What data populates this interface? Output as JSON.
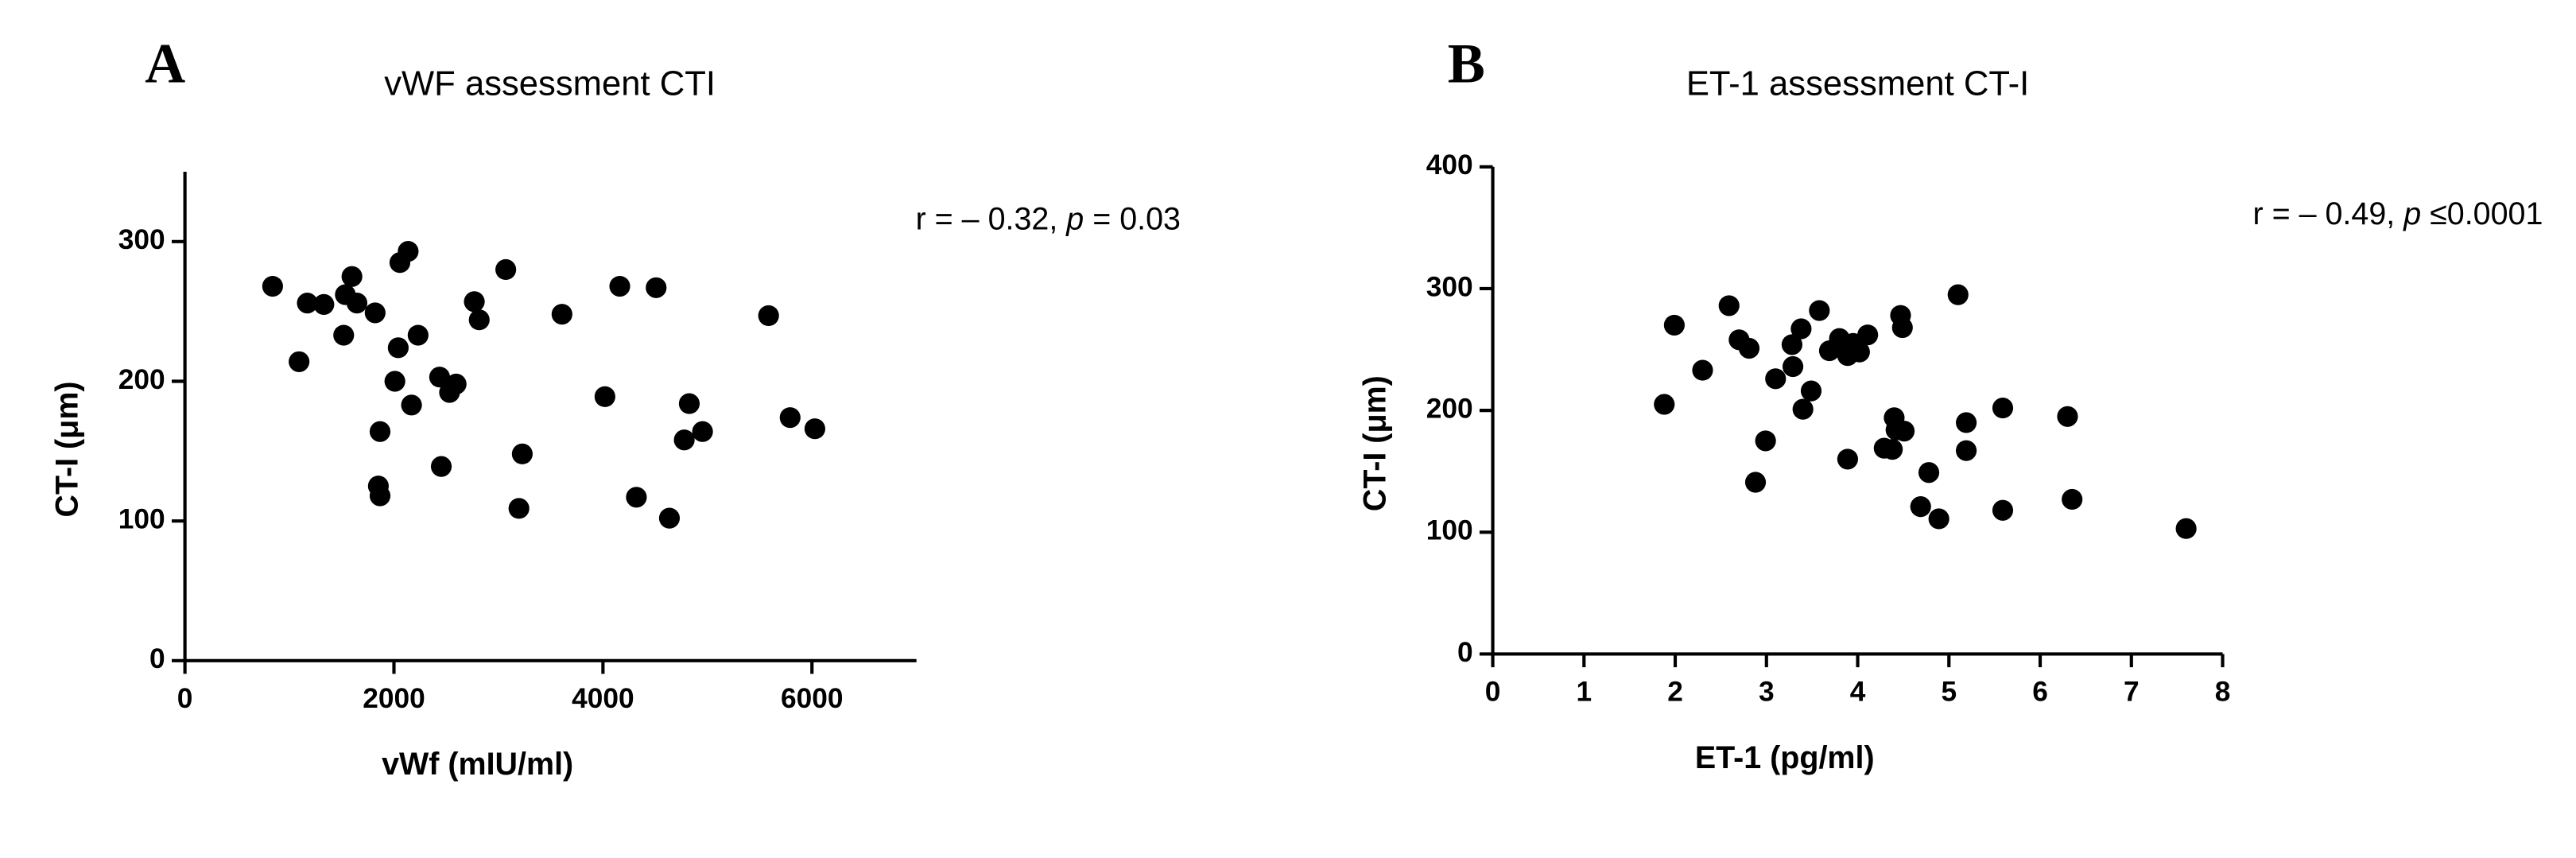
{
  "chart_data": [
    {
      "type": "scatter",
      "panel": "A",
      "title": "vWF assessment CTI",
      "xlabel": "vWf (mIU/ml)",
      "ylabel": "CT-I (μm)",
      "annotation": [
        "r = – 0.32, ",
        "p",
        " = 0.03"
      ],
      "color": "#000000",
      "xlim": [
        0,
        7000
      ],
      "xticks": [
        0,
        2000,
        4000,
        6000
      ],
      "ylim": [
        0,
        350
      ],
      "yticks": [
        0,
        100,
        200,
        300
      ],
      "series": [
        {
          "name": "vWF",
          "color": "#000000",
          "x": [
            839,
            1171,
            1329,
            1092,
            1535,
            1598,
            1646,
            1519,
            1820,
            2057,
            2136,
            2041,
            2231,
            2009,
            2168,
            2437,
            2595,
            2532,
            1867,
            1851,
            1867,
            2453,
            2769,
            2816,
            3070,
            3228,
            3196,
            3608,
            4161,
            4509,
            4019,
            4320,
            4636,
            4826,
            4778,
            4953,
            5585,
            5791,
            6028
          ],
          "values": [
            268,
            256,
            255,
            214,
            262,
            275,
            256,
            233,
            249,
            285,
            293,
            224,
            233,
            200,
            183,
            203,
            198,
            192,
            164,
            125,
            118,
            139,
            257,
            244,
            280,
            148,
            109,
            248,
            268,
            267,
            189,
            117,
            102,
            184,
            158,
            164,
            247,
            174,
            166
          ]
        }
      ]
    },
    {
      "type": "scatter",
      "panel": "B",
      "title": "ET-1 assessment CT-I",
      "xlabel": "ET-1 (pg/ml)",
      "ylabel": "CT-I (μm)",
      "annotation": [
        "r = – 0.49, ",
        "p",
        " ≤0.0001"
      ],
      "color": "#000000",
      "xlim": [
        0,
        8
      ],
      "xticks": [
        0,
        1,
        2,
        3,
        4,
        5,
        6,
        7,
        8
      ],
      "ylim": [
        0,
        400
      ],
      "yticks": [
        0,
        100,
        200,
        300,
        400
      ],
      "series": [
        {
          "name": "ET-1",
          "color": "#000000",
          "x": [
            1.88,
            1.99,
            2.3,
            2.59,
            2.7,
            2.81,
            2.99,
            2.88,
            3.1,
            3.28,
            3.29,
            3.38,
            3.4,
            3.49,
            3.58,
            3.69,
            3.8,
            3.89,
            3.95,
            4.02,
            4.11,
            3.89,
            4.29,
            4.38,
            4.4,
            4.42,
            4.51,
            4.47,
            4.49,
            4.78,
            4.69,
            4.89,
            5.1,
            5.19,
            5.19,
            5.59,
            5.59,
            6.3,
            6.35,
            7.6
          ],
          "values": [
            205,
            270,
            233,
            286,
            258,
            251,
            175,
            141,
            226,
            254,
            236,
            267,
            201,
            216,
            282,
            249,
            259,
            245,
            255,
            248,
            262,
            160,
            169,
            168,
            194,
            184,
            183,
            278,
            268,
            149,
            121,
            111,
            295,
            190,
            167,
            202,
            118,
            195,
            127,
            103
          ]
        }
      ]
    }
  ]
}
